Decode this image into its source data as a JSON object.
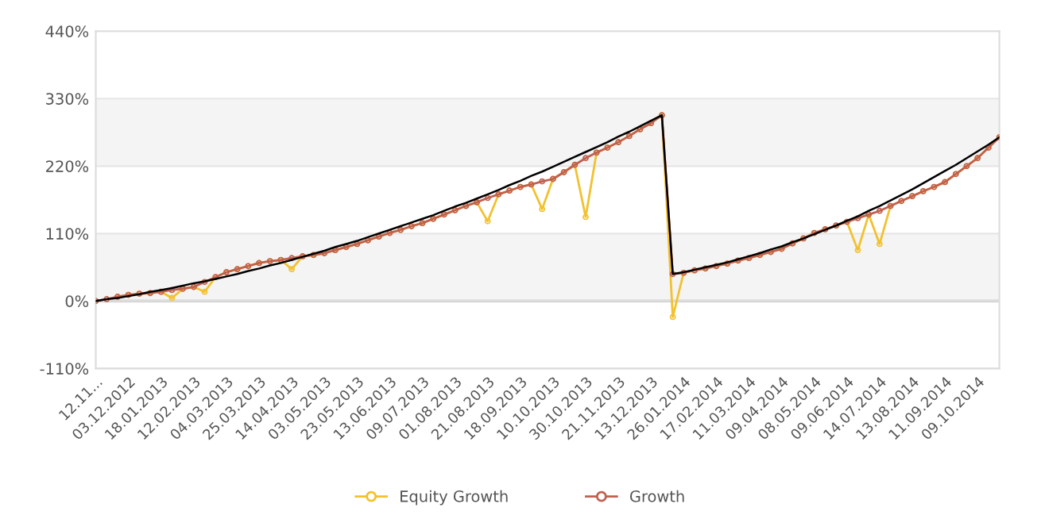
{
  "chart_data": {
    "type": "line",
    "categories": [
      "12.11...",
      null,
      null,
      "03.12.2012",
      null,
      null,
      "18.01.2013",
      null,
      null,
      "12.02.2013",
      null,
      null,
      "04.03.2013",
      null,
      null,
      "25.03.2013",
      null,
      null,
      "14.04.2013",
      null,
      null,
      "03.05.2013",
      null,
      null,
      "23.05.2013",
      null,
      null,
      "13.06.2013",
      null,
      null,
      "09.07.2013",
      null,
      null,
      "01.08.2013",
      null,
      null,
      "21.08.2013",
      null,
      null,
      "18.09.2013",
      null,
      null,
      "10.10.2013",
      null,
      null,
      "30.10.2013",
      null,
      null,
      "21.11.2013",
      null,
      null,
      "13.12.2013",
      null,
      null,
      "26.01.2014",
      null,
      null,
      "17.02.2014",
      null,
      null,
      "11.03.2014",
      null,
      null,
      "09.04.2014",
      null,
      null,
      "08.05.2014",
      null,
      null,
      "09.06.2014",
      null,
      null,
      "14.07.2014",
      null,
      null,
      "13.08.2014",
      null,
      null,
      "11.09.2014",
      null,
      null,
      "09.10.2014",
      null,
      null
    ],
    "series": [
      {
        "name": "Equity Growth",
        "color": "#f2c12e",
        "marker": "circle",
        "values": [
          null,
          null,
          7,
          10,
          12,
          13,
          15,
          5,
          20,
          23,
          15,
          39,
          47,
          52,
          57,
          62,
          65,
          67,
          52,
          73,
          75,
          78,
          83,
          88,
          93,
          99,
          105,
          111,
          116,
          122,
          127,
          134,
          141,
          148,
          155,
          161,
          130,
          174,
          180,
          186,
          190,
          150,
          199,
          210,
          222,
          137,
          242,
          250,
          259,
          269,
          280,
          290,
          303,
          -26,
          46,
          50,
          53,
          57,
          61,
          66,
          70,
          75,
          80,
          85,
          94,
          102,
          111,
          117,
          123,
          129,
          83,
          141,
          93,
          155,
          163,
          171,
          179,
          186,
          194,
          207,
          220,
          233,
          250,
          267
        ]
      },
      {
        "name": "Growth",
        "color": "#c0604f",
        "marker": "circle",
        "values": [
          0,
          3,
          7,
          10,
          12,
          13,
          15,
          18,
          20,
          23,
          31,
          39,
          47,
          52,
          57,
          62,
          65,
          67,
          70,
          73,
          75,
          78,
          83,
          88,
          93,
          99,
          105,
          111,
          116,
          122,
          127,
          134,
          141,
          148,
          155,
          161,
          168,
          174,
          180,
          186,
          190,
          195,
          199,
          210,
          222,
          233,
          242,
          250,
          259,
          269,
          280,
          290,
          303,
          44,
          46,
          50,
          53,
          57,
          61,
          66,
          70,
          75,
          80,
          85,
          94,
          102,
          111,
          117,
          123,
          129,
          135,
          141,
          147,
          155,
          163,
          171,
          179,
          186,
          194,
          207,
          220,
          233,
          250,
          267
        ]
      },
      {
        "color": "#000000",
        "marker": "none",
        "values": [
          0,
          3,
          5,
          8,
          11,
          15,
          18,
          21,
          25,
          29,
          32,
          36,
          40,
          44,
          49,
          53,
          58,
          62,
          67,
          72,
          77,
          82,
          88,
          93,
          98,
          104,
          110,
          116,
          122,
          128,
          134,
          140,
          147,
          154,
          160,
          167,
          174,
          181,
          189,
          196,
          204,
          211,
          219,
          227,
          235,
          243,
          251,
          259,
          268,
          276,
          285,
          294,
          303,
          44,
          47,
          51,
          55,
          59,
          63,
          68,
          73,
          78,
          84,
          89,
          96,
          102,
          109,
          116,
          123,
          131,
          138,
          147,
          155,
          164,
          173,
          182,
          192,
          202,
          212,
          222,
          233,
          244,
          255,
          267
        ]
      }
    ],
    "ylim": [
      -110,
      440
    ],
    "yticks": [
      {
        "value": -110,
        "label": "-110%"
      },
      {
        "value": 0,
        "label": "0%"
      },
      {
        "value": 110,
        "label": "110%"
      },
      {
        "value": 220,
        "label": "220%"
      },
      {
        "value": 330,
        "label": "330%"
      },
      {
        "value": 440,
        "label": "440%"
      }
    ],
    "bands": [
      {
        "axis": "y",
        "from": 0,
        "to": 110,
        "color": "#f4f4f4"
      },
      {
        "axis": "y",
        "from": 220,
        "to": 330,
        "color": "#f4f4f4"
      }
    ],
    "ref_lines": [
      {
        "axis": "y",
        "value": 0,
        "color": "#aaaaaa"
      }
    ],
    "grid": "y",
    "legend": "bottom",
    "line_style": "solid"
  }
}
